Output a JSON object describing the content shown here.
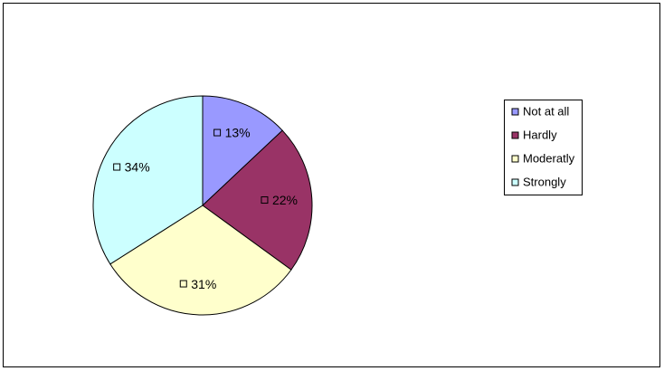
{
  "chart_data": {
    "type": "pie",
    "categories": [
      "Not at all",
      "Hardly",
      "Moderatly",
      "Strongly"
    ],
    "values": [
      13,
      22,
      31,
      34
    ],
    "value_labels": [
      "13%",
      "22%",
      "31%",
      "34%"
    ],
    "colors": [
      "#9999ff",
      "#993366",
      "#ffffcc",
      "#ccffff"
    ],
    "legend": "right"
  }
}
